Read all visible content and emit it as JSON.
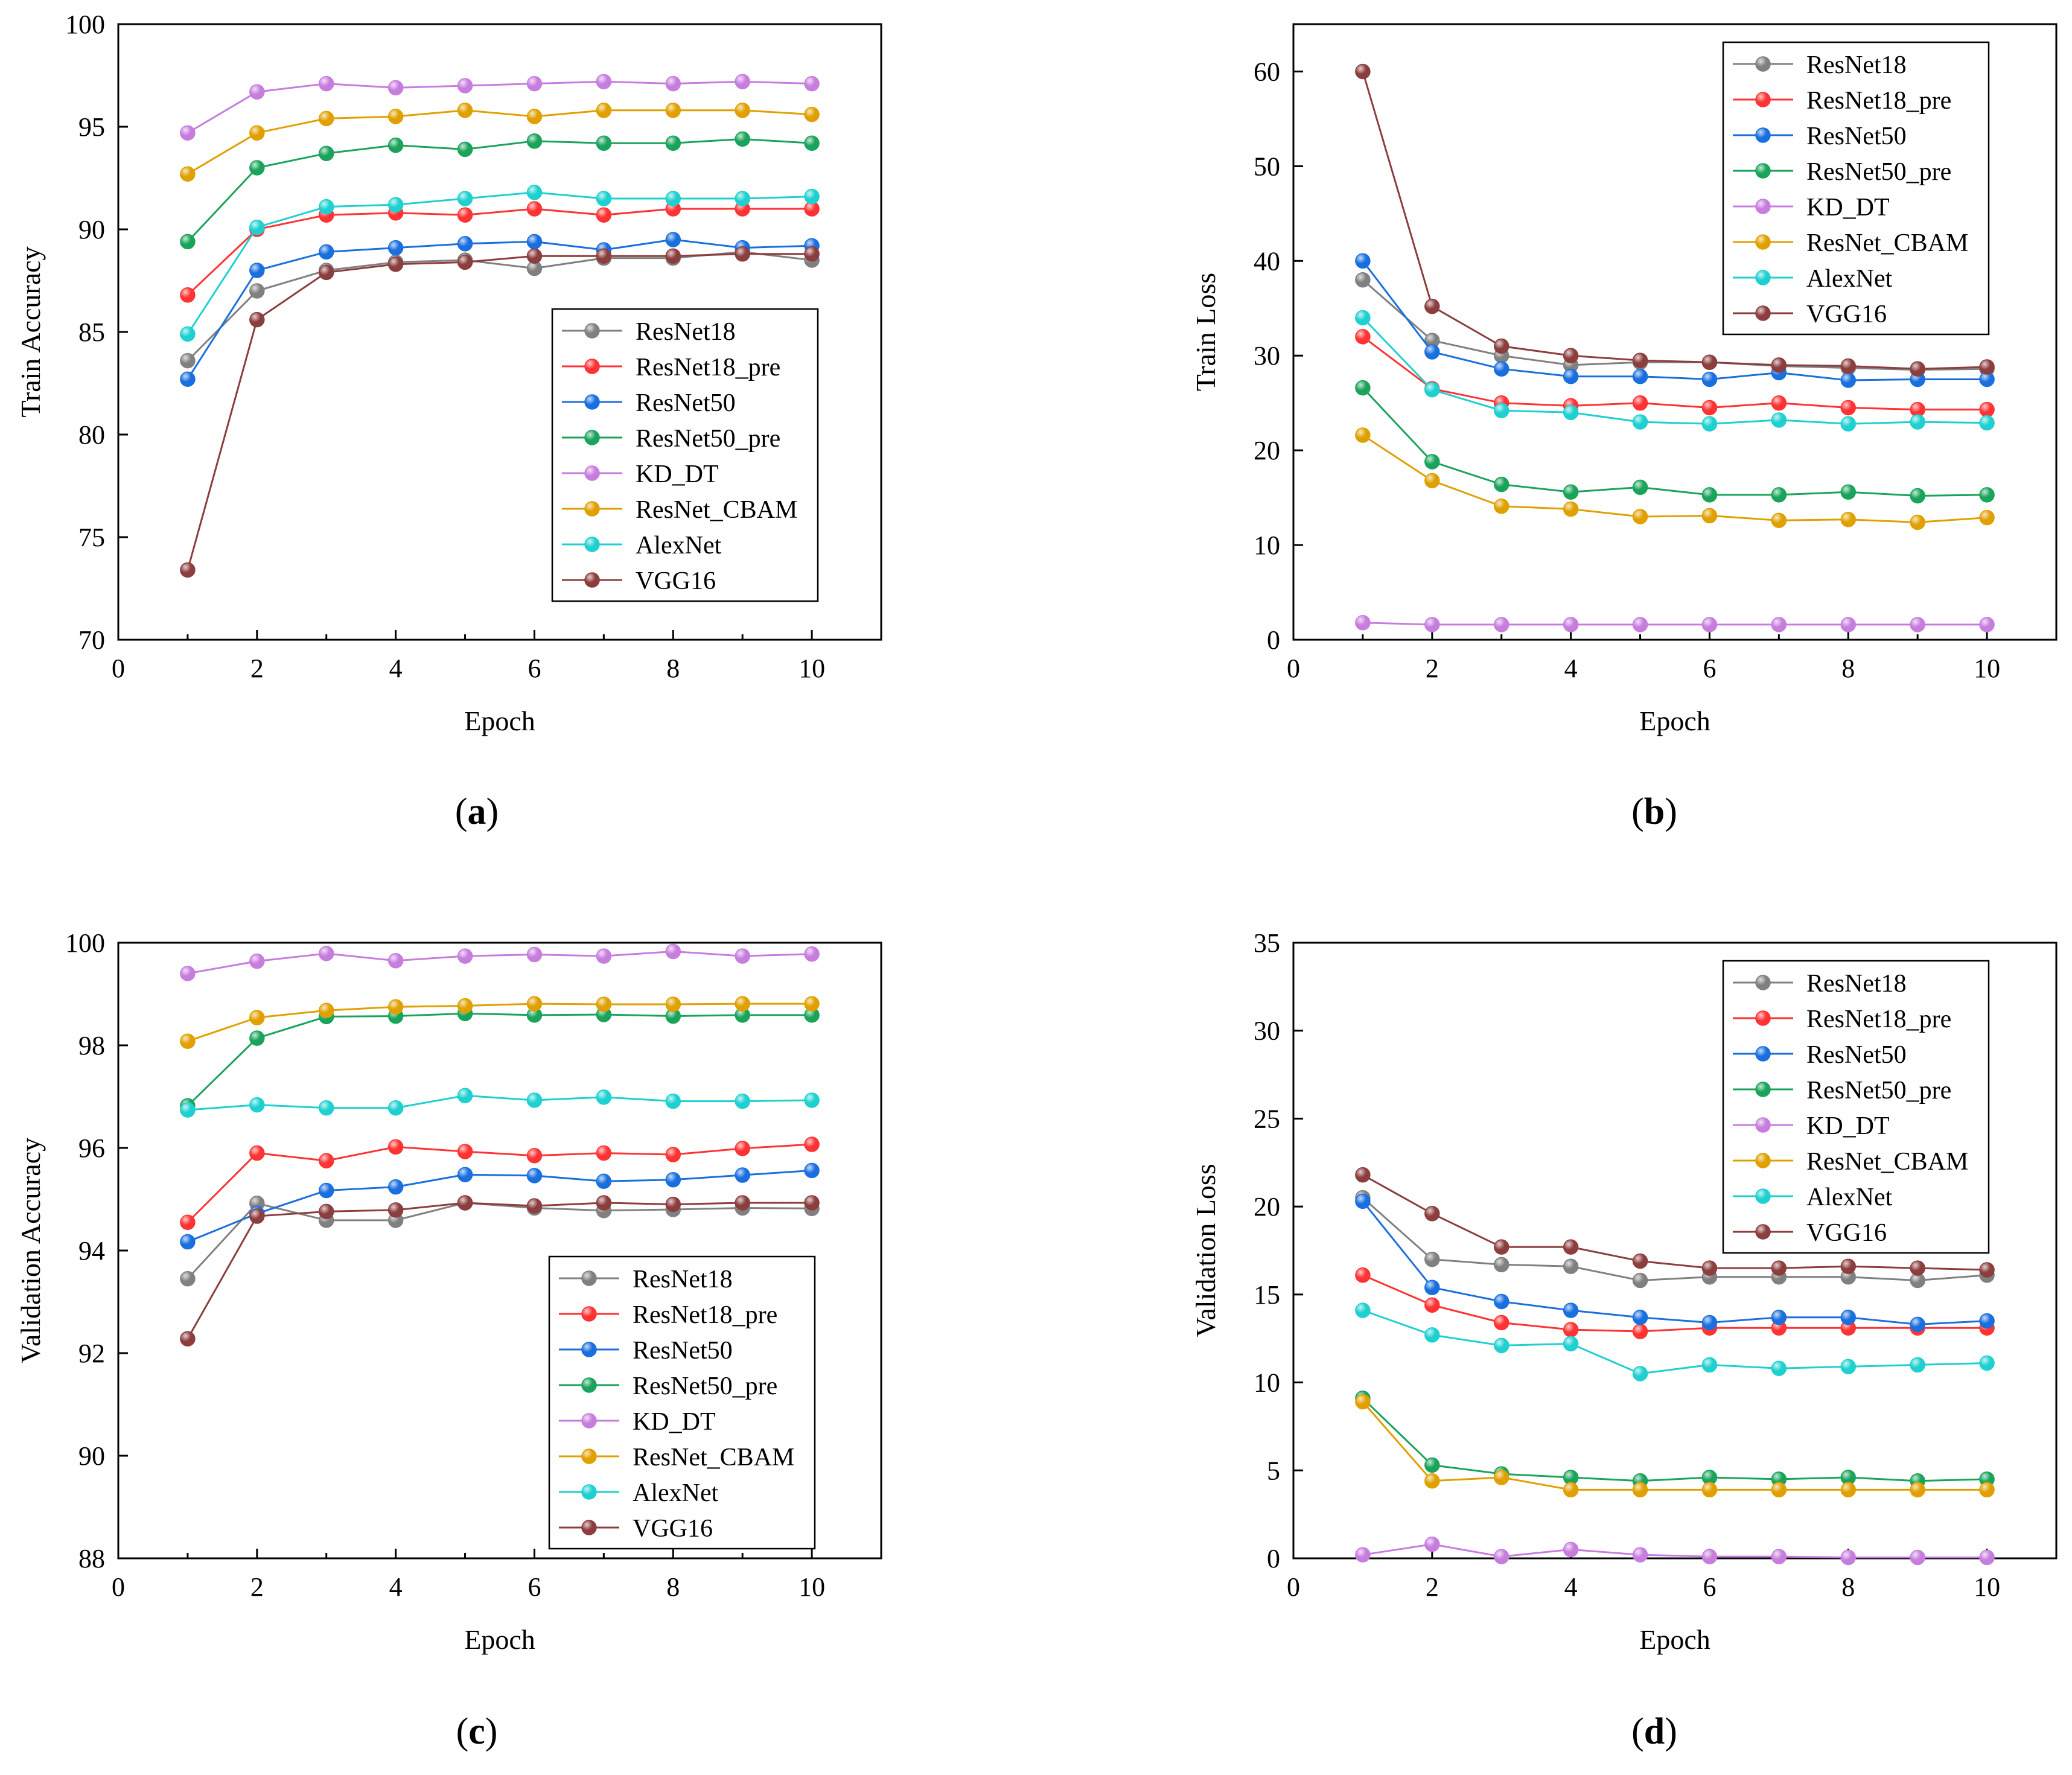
{
  "panels": [
    {
      "label_open": "(",
      "label_letter": "a",
      "label_close": ")"
    },
    {
      "label_open": "(",
      "label_letter": "b",
      "label_close": ")"
    },
    {
      "label_open": "(",
      "label_letter": "c",
      "label_close": ")"
    },
    {
      "label_open": "(",
      "label_letter": "d",
      "label_close": ")"
    }
  ],
  "chart_data": [
    {
      "type": "line",
      "title": "",
      "xlabel": "Epoch",
      "ylabel": "Train Accuracy",
      "xlim": [
        0,
        11
      ],
      "ylim": [
        70,
        100
      ],
      "xticks": [
        0,
        2,
        4,
        6,
        8,
        10
      ],
      "yticks": [
        70,
        75,
        80,
        85,
        90,
        95,
        100
      ],
      "grid": false,
      "legend": "bottom-right",
      "x": [
        1,
        2,
        3,
        4,
        5,
        6,
        7,
        8,
        9,
        10
      ],
      "series": [
        {
          "name": "ResNet18",
          "color": "#808080",
          "values": [
            83.6,
            87.0,
            88.0,
            88.4,
            88.5,
            88.1,
            88.6,
            88.6,
            88.9,
            88.5
          ]
        },
        {
          "name": "ResNet18_pre",
          "color": "#ff3333",
          "values": [
            86.8,
            90.0,
            90.7,
            90.8,
            90.7,
            91.0,
            90.7,
            91.0,
            91.0,
            91.0
          ]
        },
        {
          "name": "ResNet50",
          "color": "#1a6fdf",
          "values": [
            82.7,
            88.0,
            88.9,
            89.1,
            89.3,
            89.4,
            89.0,
            89.5,
            89.1,
            89.2
          ]
        },
        {
          "name": "ResNet50_pre",
          "color": "#1aa35a",
          "values": [
            89.4,
            93.0,
            93.7,
            94.1,
            93.9,
            94.3,
            94.2,
            94.2,
            94.4,
            94.2
          ]
        },
        {
          "name": "KD_DT",
          "color": "#c77dde",
          "values": [
            94.7,
            96.7,
            97.1,
            96.9,
            97.0,
            97.1,
            97.2,
            97.1,
            97.2,
            97.1
          ]
        },
        {
          "name": "ResNet_CBAM",
          "color": "#e0a000",
          "values": [
            92.7,
            94.7,
            95.4,
            95.5,
            95.8,
            95.5,
            95.8,
            95.8,
            95.8,
            95.6
          ]
        },
        {
          "name": "AlexNet",
          "color": "#1fd0d0",
          "values": [
            84.9,
            90.1,
            91.1,
            91.2,
            91.5,
            91.8,
            91.5,
            91.5,
            91.5,
            91.6
          ]
        },
        {
          "name": "VGG16",
          "color": "#8c3d3d",
          "values": [
            73.4,
            85.6,
            87.9,
            88.3,
            88.4,
            88.7,
            88.7,
            88.7,
            88.8,
            88.8
          ]
        }
      ]
    },
    {
      "type": "line",
      "title": "",
      "xlabel": "Epoch",
      "ylabel": "Train Loss",
      "xlim": [
        0,
        11
      ],
      "ylim": [
        0,
        65
      ],
      "xticks": [
        0,
        2,
        4,
        6,
        8,
        10
      ],
      "yticks": [
        0,
        10,
        20,
        30,
        40,
        50,
        60
      ],
      "grid": false,
      "legend": "top-right",
      "x": [
        1,
        2,
        3,
        4,
        5,
        6,
        7,
        8,
        9,
        10
      ],
      "series": [
        {
          "name": "ResNet18",
          "color": "#808080",
          "values": [
            38.0,
            31.6,
            30.0,
            29.0,
            29.3,
            29.3,
            28.9,
            28.7,
            28.5,
            28.6
          ]
        },
        {
          "name": "ResNet18_pre",
          "color": "#ff3333",
          "values": [
            32.0,
            26.5,
            25.0,
            24.7,
            25.0,
            24.5,
            25.0,
            24.5,
            24.3,
            24.3
          ]
        },
        {
          "name": "ResNet50",
          "color": "#1a6fdf",
          "values": [
            40.0,
            30.4,
            28.6,
            27.8,
            27.8,
            27.5,
            28.2,
            27.4,
            27.5,
            27.5
          ]
        },
        {
          "name": "ResNet50_pre",
          "color": "#1aa35a",
          "values": [
            26.6,
            18.8,
            16.4,
            15.6,
            16.1,
            15.3,
            15.3,
            15.6,
            15.2,
            15.3
          ]
        },
        {
          "name": "KD_DT",
          "color": "#c77dde",
          "values": [
            1.8,
            1.6,
            1.6,
            1.6,
            1.6,
            1.6,
            1.6,
            1.6,
            1.6,
            1.6
          ]
        },
        {
          "name": "ResNet_CBAM",
          "color": "#e0a000",
          "values": [
            21.6,
            16.8,
            14.1,
            13.8,
            13.0,
            13.1,
            12.6,
            12.7,
            12.4,
            12.9
          ]
        },
        {
          "name": "AlexNet",
          "color": "#1fd0d0",
          "values": [
            34.0,
            26.4,
            24.2,
            24.0,
            23.0,
            22.8,
            23.2,
            22.8,
            23.0,
            22.9
          ]
        },
        {
          "name": "VGG16",
          "color": "#8c3d3d",
          "values": [
            60.0,
            35.2,
            31.0,
            30.0,
            29.5,
            29.3,
            29.0,
            28.9,
            28.6,
            28.8
          ]
        }
      ]
    },
    {
      "type": "line",
      "title": "",
      "xlabel": "Epoch",
      "ylabel": "Validation Accuracy",
      "xlim": [
        0,
        11
      ],
      "ylim": [
        88,
        100
      ],
      "xticks": [
        0,
        2,
        4,
        6,
        8,
        10
      ],
      "yticks": [
        88,
        90,
        92,
        94,
        96,
        98,
        100
      ],
      "grid": false,
      "legend": "bottom-right",
      "x": [
        1,
        2,
        3,
        4,
        5,
        6,
        7,
        8,
        9,
        10
      ],
      "series": [
        {
          "name": "ResNet18",
          "color": "#808080",
          "values": [
            93.45,
            94.92,
            94.59,
            94.59,
            94.93,
            94.83,
            94.78,
            94.8,
            94.83,
            94.82
          ]
        },
        {
          "name": "ResNet18_pre",
          "color": "#ff3333",
          "values": [
            94.55,
            95.9,
            95.75,
            96.02,
            95.93,
            95.85,
            95.9,
            95.87,
            95.99,
            96.07
          ]
        },
        {
          "name": "ResNet50",
          "color": "#1a6fdf",
          "values": [
            94.17,
            94.72,
            95.17,
            95.24,
            95.48,
            95.46,
            95.35,
            95.38,
            95.47,
            95.56
          ]
        },
        {
          "name": "ResNet50_pre",
          "color": "#1aa35a",
          "values": [
            96.82,
            98.14,
            98.56,
            98.57,
            98.62,
            98.59,
            98.6,
            98.57,
            98.59,
            98.59
          ]
        },
        {
          "name": "KD_DT",
          "color": "#c77dde",
          "values": [
            99.4,
            99.64,
            99.79,
            99.65,
            99.74,
            99.77,
            99.74,
            99.83,
            99.74,
            99.78
          ]
        },
        {
          "name": "ResNet_CBAM",
          "color": "#e0a000",
          "values": [
            98.08,
            98.54,
            98.68,
            98.75,
            98.77,
            98.81,
            98.8,
            98.8,
            98.81,
            98.81
          ]
        },
        {
          "name": "AlexNet",
          "color": "#1fd0d0",
          "values": [
            96.74,
            96.84,
            96.78,
            96.78,
            97.02,
            96.93,
            96.99,
            96.91,
            96.91,
            96.93
          ]
        },
        {
          "name": "VGG16",
          "color": "#8c3d3d",
          "values": [
            92.28,
            94.67,
            94.76,
            94.79,
            94.93,
            94.87,
            94.93,
            94.9,
            94.93,
            94.93
          ]
        }
      ]
    },
    {
      "type": "line",
      "title": "",
      "xlabel": "Epoch",
      "ylabel": "Validation Loss",
      "xlim": [
        0,
        11
      ],
      "ylim": [
        0,
        35
      ],
      "xticks": [
        0,
        2,
        4,
        6,
        8,
        10
      ],
      "yticks": [
        0,
        5,
        10,
        15,
        20,
        25,
        30,
        35
      ],
      "grid": false,
      "legend": "top-right",
      "x": [
        1,
        2,
        3,
        4,
        5,
        6,
        7,
        8,
        9,
        10
      ],
      "series": [
        {
          "name": "ResNet18",
          "color": "#808080",
          "values": [
            20.5,
            17.0,
            16.7,
            16.6,
            15.8,
            16.0,
            16.0,
            16.0,
            15.8,
            16.1
          ]
        },
        {
          "name": "ResNet18_pre",
          "color": "#ff3333",
          "values": [
            16.1,
            14.4,
            13.4,
            13.0,
            12.9,
            13.1,
            13.1,
            13.1,
            13.1,
            13.1
          ]
        },
        {
          "name": "ResNet50",
          "color": "#1a6fdf",
          "values": [
            20.3,
            15.4,
            14.6,
            14.1,
            13.7,
            13.4,
            13.7,
            13.7,
            13.3,
            13.5
          ]
        },
        {
          "name": "ResNet50_pre",
          "color": "#1aa35a",
          "values": [
            9.1,
            5.3,
            4.8,
            4.6,
            4.4,
            4.6,
            4.5,
            4.6,
            4.4,
            4.5
          ]
        },
        {
          "name": "KD_DT",
          "color": "#c77dde",
          "values": [
            0.2,
            0.8,
            0.1,
            0.5,
            0.2,
            0.1,
            0.1,
            0.05,
            0.05,
            0.05
          ]
        },
        {
          "name": "ResNet_CBAM",
          "color": "#e0a000",
          "values": [
            8.9,
            4.4,
            4.6,
            3.9,
            3.9,
            3.9,
            3.9,
            3.9,
            3.9,
            3.9
          ]
        },
        {
          "name": "AlexNet",
          "color": "#1fd0d0",
          "values": [
            14.1,
            12.7,
            12.1,
            12.2,
            10.5,
            11.0,
            10.8,
            10.9,
            11.0,
            11.1
          ]
        },
        {
          "name": "VGG16",
          "color": "#8c3d3d",
          "values": [
            21.8,
            19.6,
            17.7,
            17.7,
            16.9,
            16.5,
            16.5,
            16.6,
            16.5,
            16.4
          ]
        }
      ]
    }
  ]
}
